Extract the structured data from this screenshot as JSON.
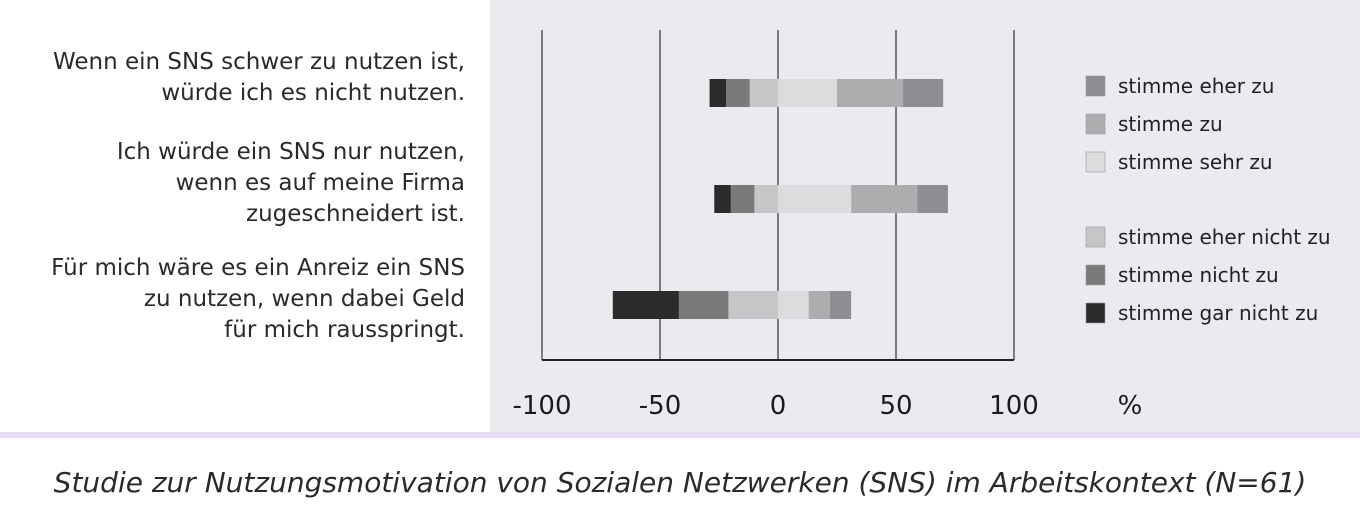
{
  "chart_data": {
    "type": "bar",
    "orientation": "horizontal",
    "stacked": "diverging",
    "categories": [
      [
        "Wenn ein SNS schwer zu nutzen ist,",
        "würde ich es nicht nutzen."
      ],
      [
        "Ich würde ein SNS nur nutzen,",
        "wenn es auf meine Firma",
        "zugeschneidert ist."
      ],
      [
        "Für mich wäre es ein Anreiz ein SNS",
        "zu nutzen, wenn dabei Geld",
        "für mich rausspringt."
      ]
    ],
    "series": [
      {
        "name": "stimme gar nicht zu",
        "color": "#2b2b2b",
        "side": "negative",
        "values": [
          7,
          7,
          28
        ]
      },
      {
        "name": "stimme nicht zu",
        "color": "#7a7a7a",
        "side": "negative",
        "values": [
          10,
          10,
          21
        ]
      },
      {
        "name": "stimme eher nicht zu",
        "color": "#c6c6c8",
        "side": "negative",
        "values": [
          12,
          10,
          21
        ]
      },
      {
        "name": "stimme sehr zu",
        "color": "#dcdcde",
        "side": "positive",
        "values": [
          25,
          31,
          13
        ]
      },
      {
        "name": "stimme zu",
        "color": "#adadb0",
        "side": "positive",
        "values": [
          28,
          28,
          9
        ]
      },
      {
        "name": "stimme eher zu",
        "color": "#8e8e92",
        "side": "positive",
        "values": [
          17,
          13,
          9
        ]
      }
    ],
    "legend": {
      "placement": "right",
      "groups": [
        [
          "stimme eher zu",
          "stimme zu",
          "stimme sehr zu"
        ],
        [
          "stimme eher nicht zu",
          "stimme nicht zu",
          "stimme gar nicht zu"
        ]
      ]
    },
    "xlim": [
      -100,
      100
    ],
    "xticks": [
      "-100",
      "-50",
      "0",
      "50",
      "100"
    ],
    "xunit": "%",
    "grid": "vertical",
    "caption": "Studie zur Nutzungsmotivation von Sozialen Netzwerken (SNS) im Arbeitskontext (N=61)"
  }
}
